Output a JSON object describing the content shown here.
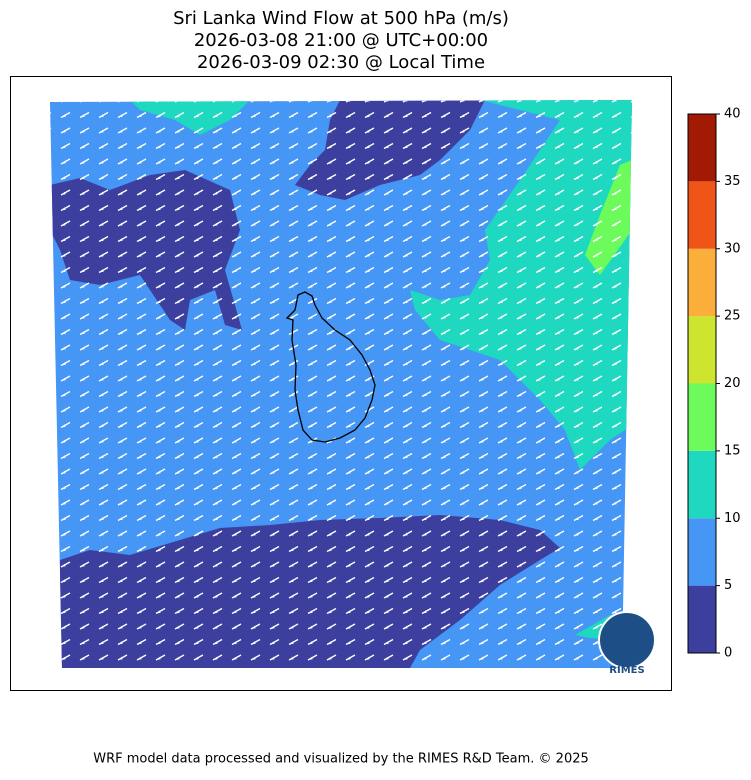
{
  "header": {
    "title_lines": [
      "Sri Lanka Wind Flow at 500 hPa (m/s)",
      "2026-03-08 21:00 @ UTC+00:00",
      "2026-03-09 02:30 @ Local Time"
    ]
  },
  "colorbar": {
    "lim": [
      0,
      40
    ],
    "ticks": [
      0,
      5,
      10,
      15,
      20,
      25,
      30,
      35,
      40
    ],
    "colors": [
      "#3d3f9e",
      "#4596f5",
      "#1fd8c0",
      "#6cfb5b",
      "#cde52e",
      "#fbae3a",
      "#ee5516",
      "#a31a04"
    ]
  },
  "logo": {
    "text": "RIMES"
  },
  "footer": {
    "text": "WRF model data processed and visualized by the RIMES R&D Team. © 2025"
  }
}
